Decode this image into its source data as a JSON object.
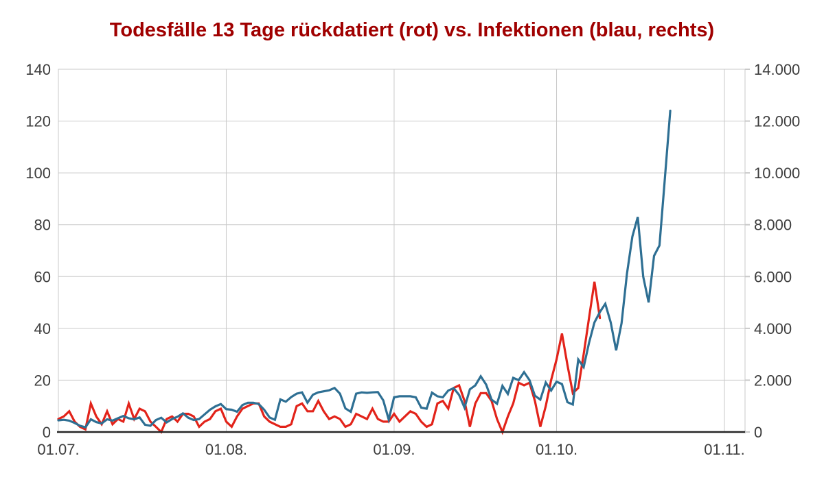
{
  "title": "Todesfälle 13 Tage rückdatiert (rot) vs. Infektionen (blau, rechts)",
  "colors": {
    "title": "#a00000",
    "deaths_line": "#e2231a",
    "infections_line": "#2e6f93",
    "gridline": "#c9c9c9",
    "axis_line": "#262626",
    "tick_text": "#3d3d3d",
    "background": "#ffffff"
  },
  "chart_data": {
    "type": "line",
    "title": "Todesfälle 13 Tage rückdatiert (rot) vs. Infektionen (blau, rechts)",
    "grid": true,
    "legend_position": "none",
    "x_axis": {
      "tick_labels": [
        "01.07.",
        "01.08.",
        "01.09.",
        "01.10.",
        "01.11."
      ],
      "tick_day_offsets": [
        0,
        31,
        62,
        92,
        123
      ],
      "axis_total_days": 123
    },
    "y_axis_left": {
      "tick_labels": [
        "0",
        "20",
        "40",
        "60",
        "80",
        "100",
        "120",
        "140"
      ],
      "ticks": [
        0,
        20,
        40,
        60,
        80,
        100,
        120,
        140
      ],
      "range": [
        0,
        140
      ]
    },
    "y_axis_right": {
      "tick_labels": [
        "0",
        "2.000",
        "4.000",
        "6.000",
        "8.000",
        "10.000",
        "12.000",
        "14.000"
      ],
      "ticks": [
        0,
        2000,
        4000,
        6000,
        8000,
        10000,
        12000,
        14000
      ],
      "range": [
        0,
        14000
      ]
    },
    "dates": [
      "01.07.",
      "02.07.",
      "03.07.",
      "04.07.",
      "05.07.",
      "06.07.",
      "07.07.",
      "08.07.",
      "09.07.",
      "10.07.",
      "11.07.",
      "12.07.",
      "13.07.",
      "14.07.",
      "15.07.",
      "16.07.",
      "17.07.",
      "18.07.",
      "19.07.",
      "20.07.",
      "21.07.",
      "22.07.",
      "23.07.",
      "24.07.",
      "25.07.",
      "26.07.",
      "27.07.",
      "28.07.",
      "29.07.",
      "30.07.",
      "31.07.",
      "01.08.",
      "02.08.",
      "03.08.",
      "04.08.",
      "05.08.",
      "06.08.",
      "07.08.",
      "08.08.",
      "09.08.",
      "10.08.",
      "11.08.",
      "12.08.",
      "13.08.",
      "14.08.",
      "15.08.",
      "16.08.",
      "17.08.",
      "18.08.",
      "19.08.",
      "20.08.",
      "21.08.",
      "22.08.",
      "23.08.",
      "24.08.",
      "25.08.",
      "26.08.",
      "27.08.",
      "28.08.",
      "29.08.",
      "30.08.",
      "31.08.",
      "01.09.",
      "02.09.",
      "03.09.",
      "04.09.",
      "05.09.",
      "06.09.",
      "07.09.",
      "08.09.",
      "09.09.",
      "10.09.",
      "11.09.",
      "12.09.",
      "13.09.",
      "14.09.",
      "15.09.",
      "16.09.",
      "17.09.",
      "18.09.",
      "19.09.",
      "20.09.",
      "21.09.",
      "22.09.",
      "23.09.",
      "24.09.",
      "25.09.",
      "26.09.",
      "27.09.",
      "28.09.",
      "29.09.",
      "30.09.",
      "01.10.",
      "02.10.",
      "03.10.",
      "04.10.",
      "05.10.",
      "06.10.",
      "07.10.",
      "08.10.",
      "09.10.",
      "10.10.",
      "11.10.",
      "12.10.",
      "13.10.",
      "14.10.",
      "15.10.",
      "16.10.",
      "17.10.",
      "18.10.",
      "19.10.",
      "20.10.",
      "21.10.",
      "22.10."
    ],
    "series": [
      {
        "name": "Todesfälle 13 Tage rückdatiert (rot)",
        "axis": "left",
        "color": "#e2231a",
        "values": [
          5,
          6,
          8,
          4,
          2,
          1,
          11,
          6,
          3,
          8,
          3,
          5,
          4,
          11,
          5,
          9,
          8,
          4,
          2,
          0,
          5,
          6,
          4,
          7,
          7,
          6,
          2,
          4,
          5,
          8,
          9,
          4,
          2,
          6,
          9,
          10,
          11,
          11,
          6,
          4,
          3,
          2,
          2,
          3,
          10,
          11,
          8,
          8,
          12,
          8,
          5,
          6,
          5,
          2,
          3,
          7,
          6,
          5,
          9,
          5,
          4,
          4,
          7,
          4,
          6,
          8,
          7,
          4,
          2,
          3,
          11,
          12,
          9,
          17,
          18,
          12,
          2,
          11,
          15,
          15,
          12,
          5,
          0,
          6,
          11,
          19,
          18,
          19,
          12,
          2,
          10,
          20,
          28,
          38,
          26,
          15,
          17,
          30,
          44,
          58,
          44
        ]
      },
      {
        "name": "Infektionen (blau, rechts)",
        "axis": "right",
        "color": "#2e6f93",
        "values": [
          450,
          470,
          440,
          350,
          240,
          180,
          490,
          380,
          330,
          490,
          440,
          530,
          620,
          530,
          490,
          560,
          280,
          240,
          460,
          550,
          370,
          500,
          590,
          720,
          550,
          460,
          500,
          680,
          860,
          990,
          1080,
          880,
          860,
          780,
          1040,
          1130,
          1130,
          1080,
          860,
          560,
          470,
          1260,
          1170,
          1350,
          1480,
          1530,
          1130,
          1440,
          1530,
          1570,
          1610,
          1700,
          1480,
          910,
          780,
          1480,
          1530,
          1510,
          1530,
          1540,
          1220,
          480,
          1340,
          1380,
          1380,
          1380,
          1340,
          940,
          900,
          1520,
          1380,
          1340,
          1600,
          1690,
          1430,
          940,
          1650,
          1800,
          2150,
          1830,
          1250,
          1090,
          1780,
          1470,
          2090,
          2000,
          2310,
          2000,
          1400,
          1250,
          1910,
          1600,
          1940,
          1850,
          1150,
          1060,
          2800,
          2500,
          3440,
          4230,
          4630,
          4950,
          4230,
          3150,
          4200,
          6100,
          7540,
          8300,
          6000,
          5000,
          6800,
          7200,
          9800,
          12400
        ]
      }
    ]
  }
}
